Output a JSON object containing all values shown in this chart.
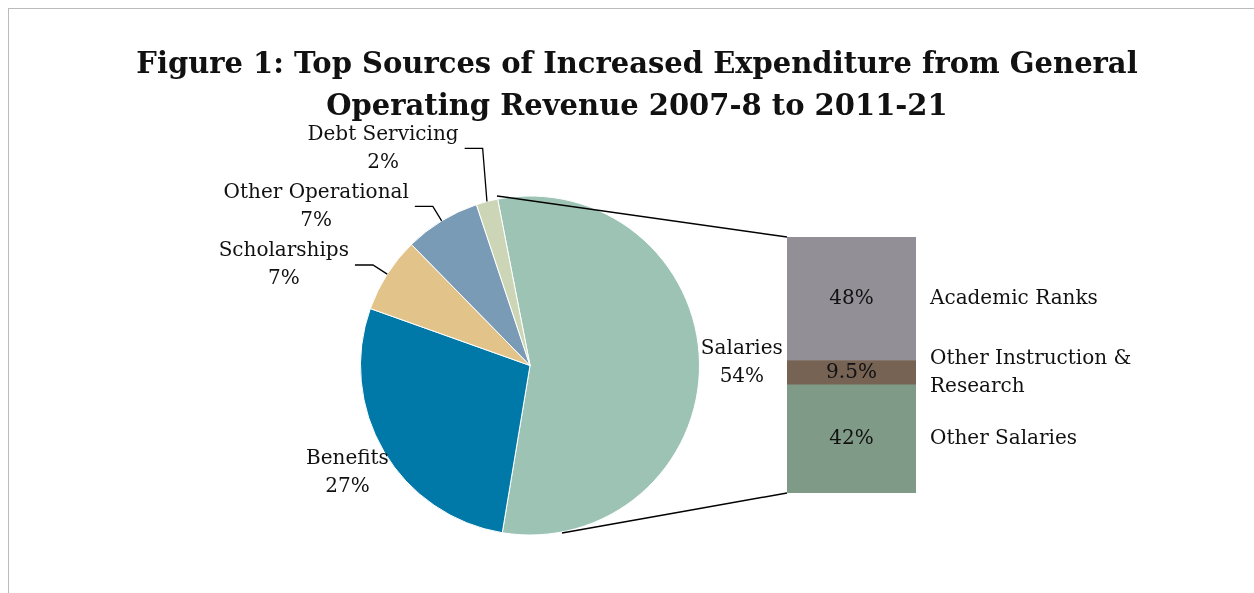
{
  "chart_data": [
    {
      "type": "pie",
      "title": "Figure 1: Top Sources of Increased Expenditure from General Operating Revenue 2007-8 to 2011-21",
      "categories": [
        "Salaries",
        "Benefits",
        "Scholarships",
        "Other Operational",
        "Debt Servicing"
      ],
      "values": [
        54,
        27,
        7,
        7,
        2
      ],
      "value_labels": [
        "54%",
        "27%",
        "7%",
        "7%",
        "2%"
      ],
      "colors": [
        "#9dc3b5",
        "#0079a8",
        "#e2c48a",
        "#7a9bb5",
        "#ccd6b6"
      ]
    },
    {
      "type": "bar",
      "stacked": true,
      "categories": [
        null
      ],
      "tick_labels": false,
      "series": [
        {
          "name": "Other Salaries",
          "color": "#7f9b87",
          "values": [
            42
          ],
          "value_labels": [
            "42%"
          ]
        },
        {
          "name": "Other Instruction & Research",
          "color": "#766354",
          "values": [
            9.5
          ],
          "value_labels": [
            "9.5%"
          ]
        },
        {
          "name": "Academic Ranks",
          "color": "#928f96",
          "values": [
            48
          ],
          "value_labels": [
            "48%"
          ]
        }
      ]
    }
  ]
}
